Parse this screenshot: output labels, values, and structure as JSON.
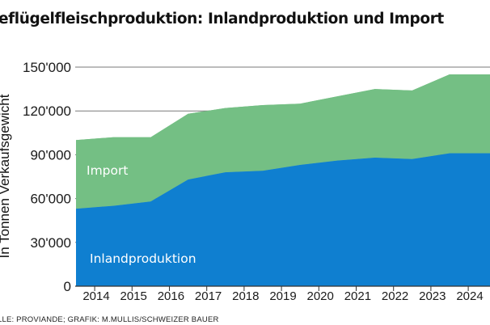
{
  "chart_data": {
    "type": "area",
    "stacked": true,
    "title": "eflügelfleischproduktion: Inlandproduktion und Import",
    "ylabel": "In Tonnen Verkaufsgewicht",
    "xlabel": "",
    "categories": [
      "2014",
      "2015",
      "2016",
      "2017",
      "2018",
      "2019",
      "2020",
      "2021",
      "2022",
      "2023",
      "2024"
    ],
    "yticks": [
      "0",
      "30'000",
      "60'000",
      "90'000",
      "120'000",
      "150'000"
    ],
    "ytick_values": [
      0,
      30000,
      60000,
      90000,
      120000,
      150000
    ],
    "ylim": [
      0,
      150000
    ],
    "grid": true,
    "series": [
      {
        "name": "Inlandproduktion",
        "color": "#0f7fd0",
        "values": [
          53000,
          55000,
          58000,
          73000,
          78000,
          79000,
          83000,
          86000,
          88000,
          87000,
          91000
        ]
      },
      {
        "name": "Import",
        "color": "#74bf84",
        "values": [
          47000,
          47000,
          44000,
          45000,
          44000,
          45000,
          42000,
          44000,
          47000,
          47000,
          54000
        ]
      }
    ],
    "source": "LLE: PROVIANDE; GRAFIK: M.MULLIS/SCHWEIZER BAUER"
  }
}
